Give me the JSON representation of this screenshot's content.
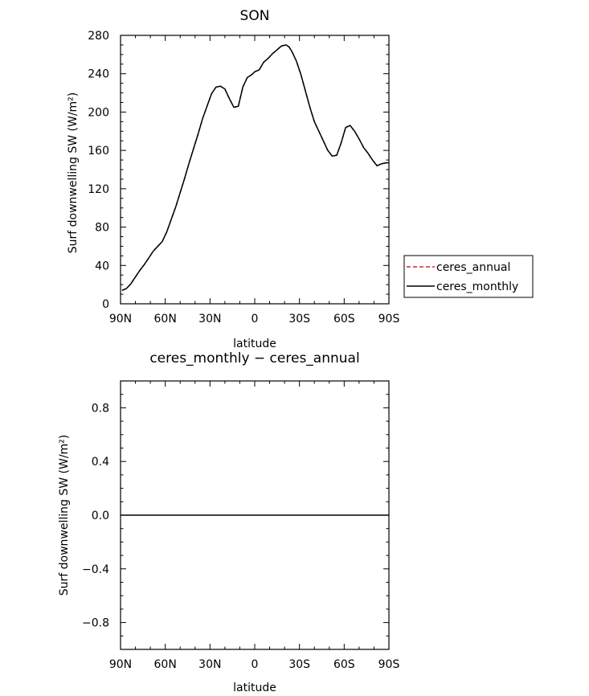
{
  "chart_data": [
    {
      "type": "line",
      "title": "SON",
      "xlabel": "latitude",
      "ylabel": "Surf downwelling SW (W/m²)",
      "ylim": [
        0,
        280
      ],
      "xlim": [
        -90,
        90
      ],
      "x_tick_values": [
        -90,
        -60,
        -30,
        0,
        30,
        60,
        90
      ],
      "x_tick_labels": [
        "90N",
        "60N",
        "30N",
        "0",
        "30S",
        "60S",
        "90S"
      ],
      "y_ticks": [
        0,
        40,
        80,
        120,
        160,
        200,
        240,
        280
      ],
      "y_tick_labels": [
        "0",
        "40",
        "80",
        "120",
        "160",
        "200",
        "240",
        "280"
      ],
      "legend_placement": "right",
      "series": [
        {
          "name": "ceres_annual",
          "color": "#d62728",
          "style": "dashed",
          "x": [
            -89,
            -86,
            -83,
            -80,
            -77,
            -74,
            -71,
            -68,
            -65,
            -62,
            -59,
            -56,
            -53,
            -50,
            -47,
            -44,
            -41,
            -38,
            -35,
            -32,
            -29,
            -26,
            -23,
            -20,
            -17,
            -14,
            -11,
            -8,
            -5,
            -2,
            0,
            3,
            6,
            9,
            12,
            15,
            18,
            21,
            23,
            25,
            28,
            31,
            34,
            37,
            40,
            43,
            46,
            49,
            52,
            55,
            58,
            61,
            64,
            67,
            70,
            73,
            76,
            79,
            82,
            85,
            88,
            90
          ],
          "y": [
            14,
            16,
            21,
            28,
            35,
            41,
            48,
            55,
            60,
            65,
            75,
            88,
            101,
            116,
            131,
            147,
            162,
            177,
            193,
            206,
            219,
            226,
            227,
            224,
            214,
            205,
            206,
            226,
            236,
            239,
            242,
            244,
            252,
            256,
            261,
            265,
            269,
            270,
            268,
            263,
            253,
            239,
            222,
            205,
            190,
            180,
            170,
            160,
            154,
            155,
            168,
            184,
            186,
            180,
            172,
            163,
            157,
            150,
            144,
            146,
            147,
            147
          ]
        },
        {
          "name": "ceres_monthly",
          "color": "#000000",
          "style": "solid",
          "x": [
            -89,
            -86,
            -83,
            -80,
            -77,
            -74,
            -71,
            -68,
            -65,
            -62,
            -59,
            -56,
            -53,
            -50,
            -47,
            -44,
            -41,
            -38,
            -35,
            -32,
            -29,
            -26,
            -23,
            -20,
            -17,
            -14,
            -11,
            -8,
            -5,
            -2,
            0,
            3,
            6,
            9,
            12,
            15,
            18,
            21,
            23,
            25,
            28,
            31,
            34,
            37,
            40,
            43,
            46,
            49,
            52,
            55,
            58,
            61,
            64,
            67,
            70,
            73,
            76,
            79,
            82,
            85,
            88,
            90
          ],
          "y": [
            14,
            16,
            21,
            28,
            35,
            41,
            48,
            55,
            60,
            65,
            75,
            88,
            101,
            116,
            131,
            147,
            162,
            177,
            193,
            206,
            219,
            226,
            227,
            224,
            214,
            205,
            206,
            226,
            236,
            239,
            242,
            244,
            252,
            256,
            261,
            265,
            269,
            270,
            268,
            263,
            253,
            239,
            222,
            205,
            190,
            180,
            170,
            160,
            154,
            155,
            168,
            184,
            186,
            180,
            172,
            163,
            157,
            150,
            144,
            146,
            147,
            147
          ]
        }
      ]
    },
    {
      "type": "line",
      "title": "ceres_monthly − ceres_annual",
      "xlabel": "latitude",
      "ylabel": "Surf downwelling SW (W/m²)",
      "ylim": [
        -1.0,
        1.0
      ],
      "xlim": [
        -90,
        90
      ],
      "x_tick_values": [
        -90,
        -60,
        -30,
        0,
        30,
        60,
        90
      ],
      "x_tick_labels": [
        "90N",
        "60N",
        "30N",
        "0",
        "30S",
        "60S",
        "90S"
      ],
      "y_ticks": [
        -0.8,
        -0.4,
        0.0,
        0.4,
        0.8
      ],
      "y_tick_labels": [
        "−0.8",
        "−0.4",
        "0.0",
        "0.4",
        "0.8"
      ],
      "series": [
        {
          "color": "#000000",
          "style": "solid",
          "x": [
            -90,
            90
          ],
          "y": [
            0,
            0
          ]
        }
      ]
    }
  ]
}
